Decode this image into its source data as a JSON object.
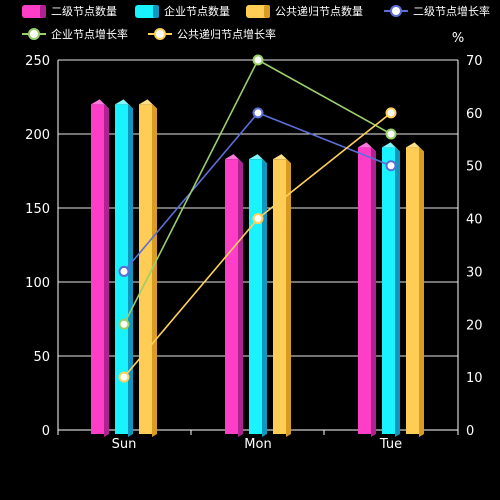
{
  "chart_data": {
    "type": "bar",
    "categories": [
      "Sun",
      "Mon",
      "Tue"
    ],
    "y_left": {
      "ticks": [
        0,
        50,
        100,
        150,
        200,
        250
      ],
      "range": [
        0,
        250
      ]
    },
    "y_right": {
      "label": "%",
      "ticks": [
        0,
        10,
        20,
        30,
        40,
        50,
        60,
        70
      ],
      "range": [
        0,
        70
      ]
    },
    "grid": true,
    "legend_position": "top-left",
    "bar_series": [
      {
        "name": "二级节点数量",
        "values": [
          220,
          183,
          191
        ],
        "color": "#ff3ec8",
        "side": "#b02292",
        "top": "#ff7ae0"
      },
      {
        "name": "企业节点数量",
        "values": [
          220,
          183,
          191
        ],
        "color": "#19f2ff",
        "side": "#1196bf",
        "top": "#7ff8ff"
      },
      {
        "name": "公共递归节点数量",
        "values": [
          220,
          183,
          191
        ],
        "color": "#ffcc55",
        "side": "#d99c22",
        "top": "#ffe08a"
      }
    ],
    "line_series": [
      {
        "name": "二级节点增长率",
        "values": [
          30,
          60,
          50
        ],
        "color": "#5b6fd6"
      },
      {
        "name": "企业节点增长率",
        "values": [
          20,
          70,
          56
        ],
        "color": "#9ad06a"
      },
      {
        "name": "公共递归节点增长率",
        "values": [
          10,
          40,
          60
        ],
        "color": "#ffd05a"
      }
    ]
  }
}
